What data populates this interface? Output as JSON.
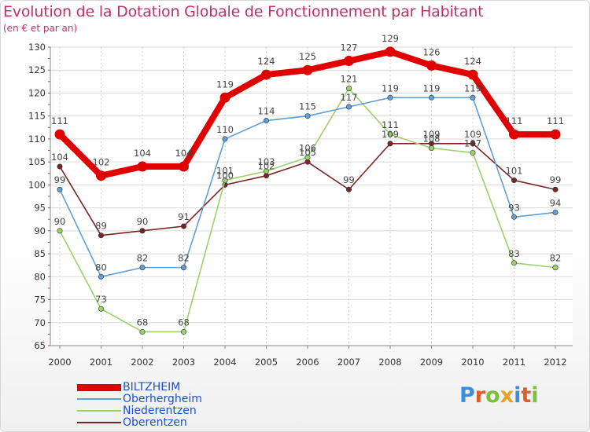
{
  "chart_data": {
    "type": "line",
    "title": "Evolution de la Dotation Globale de Fonctionnement par Habitant",
    "subtitle": "(en € et par an)",
    "xlabel": "",
    "ylabel": "",
    "x": [
      "2000",
      "2001",
      "2002",
      "2003",
      "2004",
      "2005",
      "2006",
      "2007",
      "2008",
      "2009",
      "2010",
      "2011",
      "2012"
    ],
    "ylim": [
      65,
      130
    ],
    "yticks": [
      65,
      70,
      75,
      80,
      85,
      90,
      95,
      100,
      105,
      110,
      115,
      120,
      125,
      130
    ],
    "grid": true,
    "legend_position": "bottom-left",
    "series": [
      {
        "name": "BILTZHEIM",
        "color": "#e00000",
        "values": [
          111,
          102,
          104,
          104,
          119,
          124,
          125,
          127,
          129,
          126,
          124,
          111,
          111
        ]
      },
      {
        "name": "Oberhergheim",
        "color": "#5fa0d6",
        "values": [
          99,
          80,
          82,
          82,
          110,
          114,
          115,
          117,
          119,
          119,
          119,
          93,
          94
        ]
      },
      {
        "name": "Niederentzen",
        "color": "#9ad26a",
        "values": [
          90,
          73,
          68,
          68,
          101,
          103,
          106,
          121,
          111,
          108,
          107,
          83,
          82
        ]
      },
      {
        "name": "Oberentzen",
        "color": "#7a2424",
        "values": [
          104,
          89,
          90,
          91,
          100,
          102,
          105,
          99,
          109,
          109,
          109,
          101,
          99
        ]
      }
    ]
  }
}
